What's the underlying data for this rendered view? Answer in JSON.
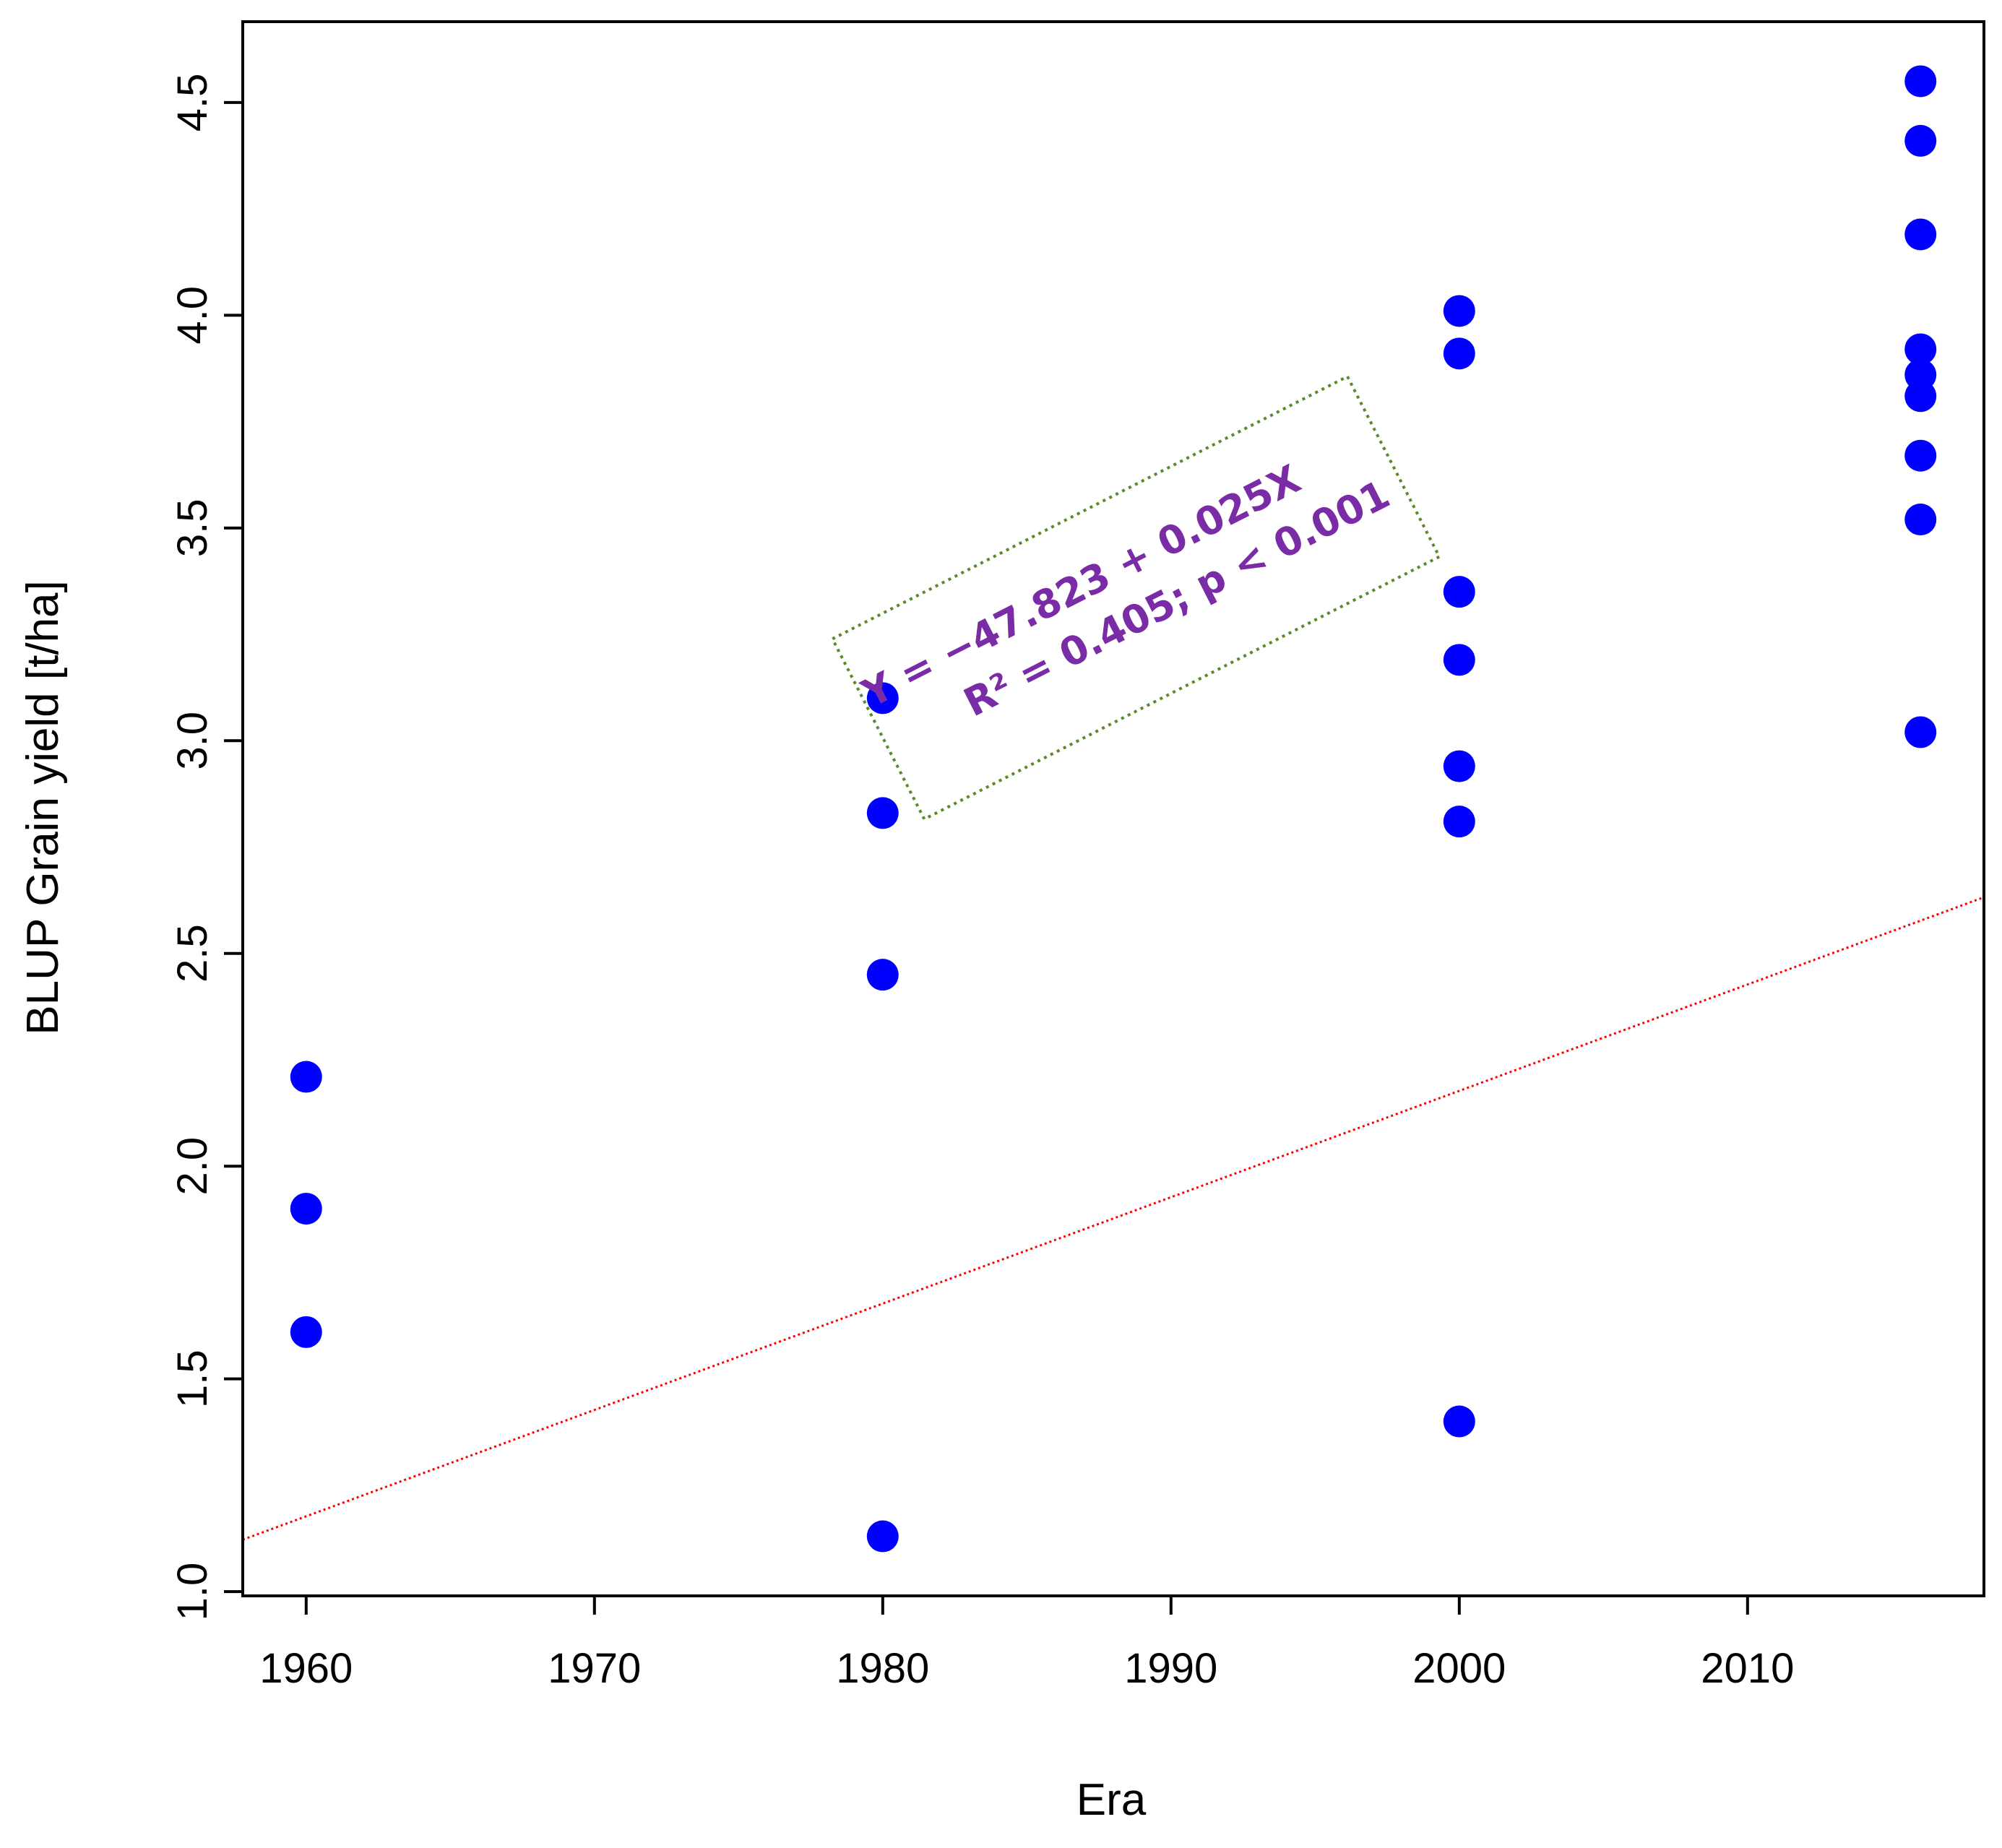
{
  "chart_data": {
    "type": "scatter",
    "xlabel": "Era",
    "ylabel": "BLUP Grain yield [t/ha]",
    "xlim": [
      1957.8,
      2018.2
    ],
    "ylim": [
      0.99,
      4.69
    ],
    "xticks": [
      "1960",
      "1970",
      "1980",
      "1990",
      "2000",
      "2010"
    ],
    "yticks": [
      "1.0",
      "1.5",
      "2.0",
      "2.5",
      "3.0",
      "3.5",
      "4.0",
      "4.5"
    ],
    "grid": false,
    "point_color": "#0000ff",
    "series": [
      {
        "points": [
          {
            "x": 1960,
            "y": 2.21
          },
          {
            "x": 1960,
            "y": 1.9
          },
          {
            "x": 1960,
            "y": 1.61
          },
          {
            "x": 1980,
            "y": 3.1
          },
          {
            "x": 1980,
            "y": 2.83
          },
          {
            "x": 1980,
            "y": 2.45
          },
          {
            "x": 1980,
            "y": 1.13
          },
          {
            "x": 2000,
            "y": 4.01
          },
          {
            "x": 2000,
            "y": 3.91
          },
          {
            "x": 2000,
            "y": 3.35
          },
          {
            "x": 2000,
            "y": 3.19
          },
          {
            "x": 2000,
            "y": 2.94
          },
          {
            "x": 2000,
            "y": 2.81
          },
          {
            "x": 2000,
            "y": 1.4
          },
          {
            "x": 2016,
            "y": 4.55
          },
          {
            "x": 2016,
            "y": 4.41
          },
          {
            "x": 2016,
            "y": 4.19
          },
          {
            "x": 2016,
            "y": 3.92
          },
          {
            "x": 2016,
            "y": 3.86
          },
          {
            "x": 2016,
            "y": 3.81
          },
          {
            "x": 2016,
            "y": 3.67
          },
          {
            "x": 2016,
            "y": 3.52
          },
          {
            "x": 2016,
            "y": 3.02
          }
        ]
      }
    ],
    "regression_line": {
      "color": "#ff0000",
      "style": "dashed",
      "intercept": -47.823,
      "slope": 0.025
    },
    "annotation": {
      "line1": "Y = −47.823 + 0.025X",
      "line2": "R² = 0.405; p < 0.001",
      "text_color": "#7a2ba6",
      "box_color": "#5a8a2a"
    }
  }
}
